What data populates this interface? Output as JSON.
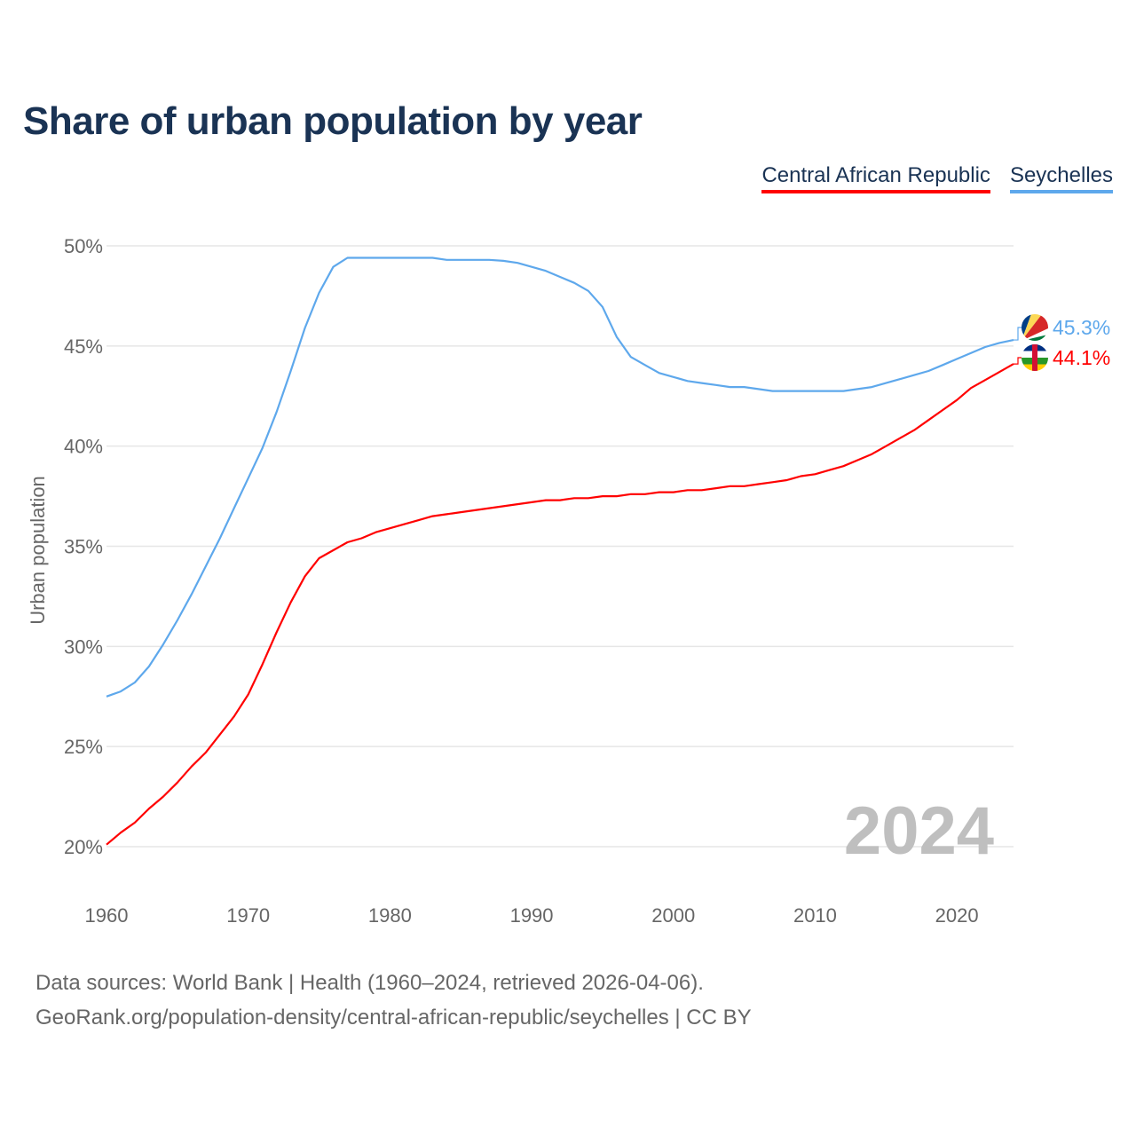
{
  "title": "Share of urban population by year",
  "legend": [
    {
      "label": "Central African Republic",
      "color": "#ff0000"
    },
    {
      "label": "Seychelles",
      "color": "#5ea8ec"
    }
  ],
  "footer": {
    "line1": "Data sources: World Bank | Health (1960–2024, retrieved 2026-04-06).",
    "line2": "GeoRank.org/population-density/central-african-republic/seychelles | CC BY"
  },
  "chart_data": {
    "type": "line",
    "title": "Share of urban population by year",
    "xlabel": "",
    "ylabel": "Urban population",
    "xlim": [
      1960,
      2024
    ],
    "ylim": [
      20,
      50
    ],
    "xticks": [
      "1960",
      "1970",
      "1980",
      "1990",
      "2000",
      "2010",
      "2020"
    ],
    "yticks": [
      "20%",
      "25%",
      "30%",
      "35%",
      "40%",
      "45%",
      "50%"
    ],
    "grid": true,
    "year_watermark": "2024",
    "x": [
      1960,
      1961,
      1962,
      1963,
      1964,
      1965,
      1966,
      1967,
      1968,
      1969,
      1970,
      1971,
      1972,
      1973,
      1974,
      1975,
      1976,
      1977,
      1978,
      1979,
      1980,
      1981,
      1982,
      1983,
      1984,
      1985,
      1986,
      1987,
      1988,
      1989,
      1990,
      1991,
      1992,
      1993,
      1994,
      1995,
      1996,
      1997,
      1998,
      1999,
      2000,
      2001,
      2002,
      2003,
      2004,
      2005,
      2006,
      2007,
      2008,
      2009,
      2010,
      2011,
      2012,
      2013,
      2014,
      2015,
      2016,
      2017,
      2018,
      2019,
      2020,
      2021,
      2022,
      2023,
      2024
    ],
    "series": [
      {
        "name": "Central African Republic",
        "color": "#ff0000",
        "end_label": "44.1%",
        "values": [
          20.1,
          20.7,
          21.2,
          21.9,
          22.5,
          23.2,
          24.0,
          24.7,
          25.6,
          26.5,
          27.6,
          29.1,
          30.7,
          32.2,
          33.5,
          34.4,
          34.8,
          35.2,
          35.4,
          35.7,
          35.9,
          36.1,
          36.3,
          36.5,
          36.6,
          36.7,
          36.8,
          36.9,
          37.0,
          37.1,
          37.2,
          37.3,
          37.3,
          37.4,
          37.4,
          37.5,
          37.5,
          37.6,
          37.6,
          37.7,
          37.7,
          37.8,
          37.8,
          37.9,
          38.0,
          38.0,
          38.1,
          38.2,
          38.3,
          38.5,
          38.6,
          38.8,
          39.0,
          39.3,
          39.6,
          40.0,
          40.4,
          40.8,
          41.3,
          41.8,
          42.3,
          42.9,
          43.3,
          43.7,
          44.1
        ]
      },
      {
        "name": "Seychelles",
        "color": "#5ea8ec",
        "end_label": "45.3%",
        "values": [
          27.5,
          27.75,
          28.2,
          29.0,
          30.1,
          31.3,
          32.6,
          34.0,
          35.4,
          36.9,
          38.4,
          39.9,
          41.7,
          43.75,
          45.9,
          47.65,
          48.95,
          49.4,
          49.4,
          49.4,
          49.4,
          49.4,
          49.4,
          49.4,
          49.3,
          49.3,
          49.3,
          49.3,
          49.25,
          49.15,
          48.95,
          48.75,
          48.45,
          48.15,
          47.75,
          46.95,
          45.45,
          44.45,
          44.05,
          43.65,
          43.45,
          43.25,
          43.15,
          43.05,
          42.95,
          42.95,
          42.85,
          42.75,
          42.75,
          42.75,
          42.75,
          42.75,
          42.75,
          42.85,
          42.95,
          43.15,
          43.35,
          43.55,
          43.75,
          44.05,
          44.35,
          44.65,
          44.95,
          45.15,
          45.3
        ]
      }
    ]
  }
}
